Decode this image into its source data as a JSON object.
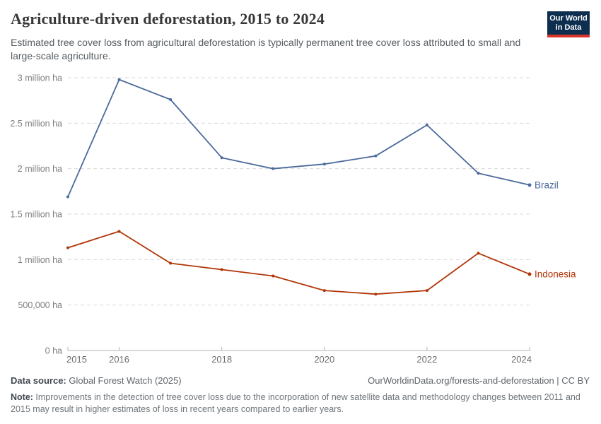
{
  "header": {
    "title": "Agriculture-driven deforestation, 2015 to 2024",
    "subtitle": "Estimated tree cover loss from agricultural deforestation is typically permanent tree cover loss attributed to small and large-scale agriculture.",
    "logo": {
      "line1": "Our World",
      "line2": "in Data",
      "bg_color": "#0d2e4f",
      "accent_color": "#d8352a"
    }
  },
  "chart_data": {
    "type": "line",
    "title": "Agriculture-driven deforestation, 2015 to 2024",
    "unit": "million ha",
    "x": [
      2015,
      2016,
      2017,
      2018,
      2019,
      2020,
      2021,
      2022,
      2023,
      2024
    ],
    "series": [
      {
        "name": "Brazil",
        "color": "#4C6A9C",
        "values": [
          1.69,
          2.98,
          2.76,
          2.12,
          2.0,
          2.05,
          2.14,
          2.48,
          1.95,
          1.82
        ]
      },
      {
        "name": "Indonesia",
        "color": "#B13507",
        "values": [
          1.13,
          1.31,
          0.96,
          0.89,
          0.82,
          0.66,
          0.62,
          0.66,
          1.07,
          0.84
        ]
      }
    ],
    "ylim": [
      0,
      3
    ],
    "yticks": [
      {
        "value": 3,
        "label": "3 million ha"
      },
      {
        "value": 2.5,
        "label": "2.5 million ha"
      },
      {
        "value": 2,
        "label": "2 million ha"
      },
      {
        "value": 1.5,
        "label": "1.5 million ha"
      },
      {
        "value": 1,
        "label": "1 million ha"
      },
      {
        "value": 0.5,
        "label": "500,000 ha"
      },
      {
        "value": 0,
        "label": "0 ha"
      }
    ],
    "xticks": [
      {
        "value": 2015,
        "label": "2015"
      },
      {
        "value": 2016,
        "label": "2016"
      },
      {
        "value": 2018,
        "label": "2018"
      },
      {
        "value": 2020,
        "label": "2020"
      },
      {
        "value": 2022,
        "label": "2022"
      },
      {
        "value": 2024,
        "label": "2024"
      }
    ],
    "grid": "horizontal-dashed",
    "legend_position": "end-of-line"
  },
  "footer": {
    "source_label": "Data source:",
    "source_value": " Global Forest Watch (2025)",
    "attribution": "OurWorldinData.org/forests-and-deforestation | CC BY",
    "note_label": "Note:",
    "note_value": " Improvements in the detection of tree cover loss due to the incorporation of new satellite data and methodology changes between 2011 and 2015 may result in higher estimates of loss in recent years compared to earlier years."
  }
}
